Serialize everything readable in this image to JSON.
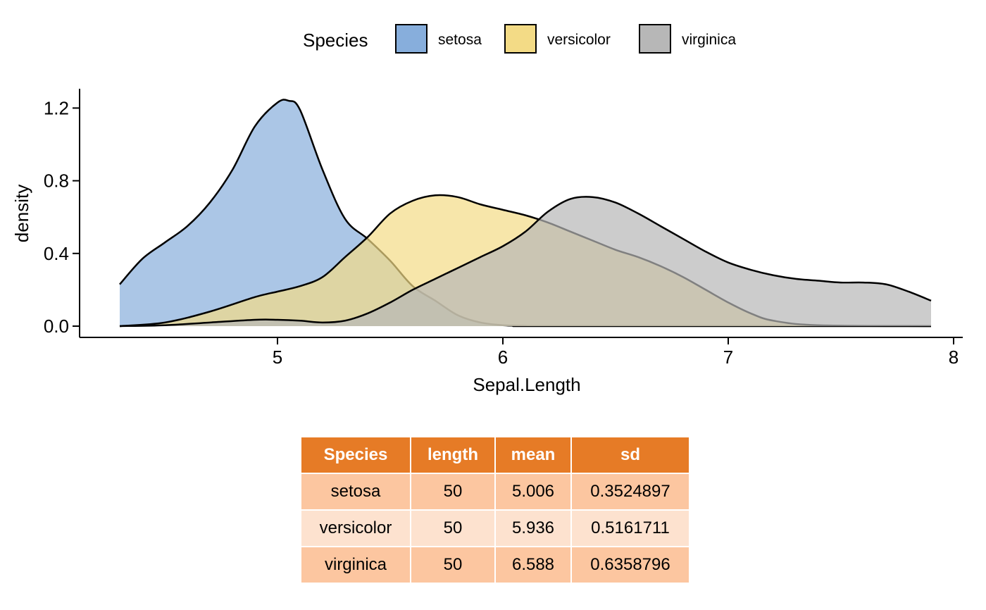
{
  "chart_data": {
    "type": "area",
    "subtype": "density",
    "xlabel": "Sepal.Length",
    "ylabel": "density",
    "xlim": [
      4.3,
      7.9
    ],
    "ylim": [
      0,
      1.25
    ],
    "x_ticks": [
      5,
      6,
      7,
      8
    ],
    "y_ticks": [
      0.0,
      0.4,
      0.8,
      1.2
    ],
    "y_tick_labels": [
      "0.0",
      "0.4",
      "0.8",
      "1.2"
    ],
    "grid": false,
    "legend": {
      "title": "Species",
      "position": "top",
      "entries": [
        "setosa",
        "versicolor",
        "virginica"
      ]
    },
    "series": [
      {
        "name": "setosa",
        "color": "#87AEDC",
        "x": [
          4.3,
          4.4,
          4.5,
          4.6,
          4.7,
          4.8,
          4.9,
          5.0,
          5.05,
          5.1,
          5.2,
          5.3,
          5.4,
          5.5,
          5.6,
          5.7,
          5.8,
          5.9,
          6.0,
          6.1,
          6.2,
          7.9
        ],
        "y": [
          0.23,
          0.37,
          0.46,
          0.55,
          0.68,
          0.86,
          1.1,
          1.23,
          1.24,
          1.19,
          0.86,
          0.59,
          0.48,
          0.36,
          0.22,
          0.14,
          0.06,
          0.02,
          0.005,
          0.001,
          0.0,
          0.0
        ]
      },
      {
        "name": "versicolor",
        "color": "#F3DB86",
        "x": [
          4.3,
          4.5,
          4.7,
          4.9,
          5.0,
          5.1,
          5.2,
          5.3,
          5.4,
          5.5,
          5.6,
          5.7,
          5.8,
          5.9,
          6.0,
          6.1,
          6.2,
          6.3,
          6.4,
          6.5,
          6.6,
          6.7,
          6.8,
          6.9,
          7.0,
          7.1,
          7.2,
          7.4,
          7.9
        ],
        "y": [
          0.0,
          0.02,
          0.08,
          0.16,
          0.19,
          0.22,
          0.27,
          0.38,
          0.49,
          0.62,
          0.69,
          0.72,
          0.71,
          0.67,
          0.64,
          0.61,
          0.57,
          0.52,
          0.47,
          0.42,
          0.38,
          0.33,
          0.27,
          0.2,
          0.13,
          0.07,
          0.03,
          0.005,
          0.0
        ]
      },
      {
        "name": "virginica",
        "color": "#B7B7B7",
        "x": [
          4.3,
          4.5,
          4.7,
          4.9,
          5.0,
          5.1,
          5.2,
          5.3,
          5.4,
          5.5,
          5.6,
          5.7,
          5.8,
          5.9,
          6.0,
          6.1,
          6.2,
          6.3,
          6.4,
          6.5,
          6.6,
          6.7,
          6.8,
          6.9,
          7.0,
          7.1,
          7.2,
          7.3,
          7.4,
          7.5,
          7.6,
          7.7,
          7.8,
          7.9
        ],
        "y": [
          0.0,
          0.005,
          0.02,
          0.035,
          0.035,
          0.03,
          0.02,
          0.03,
          0.07,
          0.13,
          0.2,
          0.26,
          0.32,
          0.38,
          0.44,
          0.52,
          0.63,
          0.7,
          0.71,
          0.68,
          0.62,
          0.55,
          0.48,
          0.41,
          0.35,
          0.31,
          0.28,
          0.26,
          0.25,
          0.24,
          0.24,
          0.23,
          0.19,
          0.14
        ]
      }
    ]
  },
  "table": {
    "header_color": "#E67B26",
    "row_colors": [
      "#FCC6A0",
      "#FDE2CF",
      "#FCC6A0"
    ],
    "columns": [
      "Species",
      "length",
      "mean",
      "sd"
    ],
    "rows": [
      [
        "setosa",
        "50",
        "5.006",
        "0.3524897"
      ],
      [
        "versicolor",
        "50",
        "5.936",
        "0.5161711"
      ],
      [
        "virginica",
        "50",
        "6.588",
        "0.6358796"
      ]
    ]
  }
}
